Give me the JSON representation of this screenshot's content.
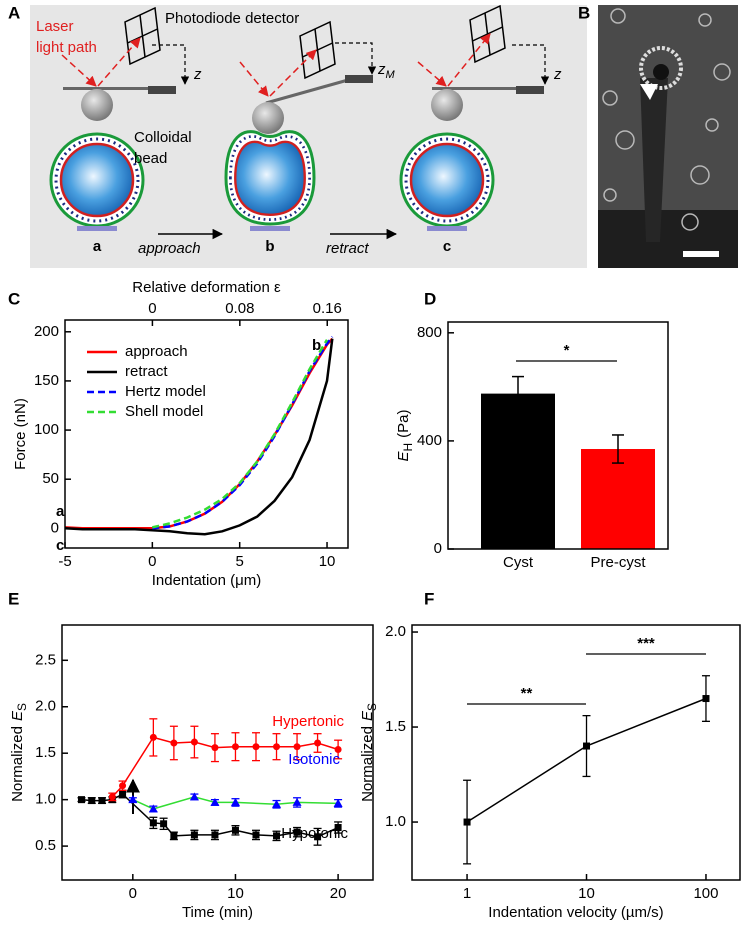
{
  "panel_labels": [
    "A",
    "B",
    "C",
    "D",
    "E",
    "F"
  ],
  "schematic": {
    "detector_label": "Photodiode detector",
    "laser_label": [
      "Laser",
      "light path"
    ],
    "bead_label": [
      "Colloidal",
      "bead"
    ],
    "states": [
      "a",
      "b",
      "c"
    ],
    "steps": [
      "approach",
      "retract"
    ],
    "heights": [
      {
        "symbol": "z"
      },
      {
        "symbol": "z",
        "subscript": "M"
      },
      {
        "symbol": "z"
      }
    ]
  },
  "chart_data": [
    {
      "type": "line",
      "x_label": "Indentation (μm)",
      "y_label": "Force (nN)",
      "x2_label": "Relative deformation ε",
      "xlim": [
        -5,
        11.2
      ],
      "xticks": [
        -5,
        0,
        5,
        10
      ],
      "ylim": [
        -20,
        212
      ],
      "yticks": [
        0,
        50,
        100,
        150,
        200
      ],
      "x2lim": [
        -0.08,
        0.179
      ],
      "x2ticks": [
        0,
        0.08,
        0.16
      ],
      "legend": "upper left",
      "annotations": [
        "a",
        "b",
        "c"
      ],
      "series": [
        {
          "name": "approach",
          "color": "#ff0000",
          "x": [
            -5,
            -4,
            -3,
            -2,
            -1,
            0,
            1,
            2,
            3,
            4,
            5,
            6,
            7,
            8,
            9,
            10,
            10.3
          ],
          "values": [
            1,
            0,
            0,
            0,
            0,
            0,
            2,
            7,
            15,
            27,
            45,
            68,
            95,
            125,
            158,
            187,
            193
          ]
        },
        {
          "name": "retract",
          "color": "#000000",
          "x": [
            -5,
            -4,
            -3,
            -2,
            -1,
            0,
            1,
            2,
            3,
            4,
            5,
            6,
            7,
            8,
            9,
            10,
            10.3
          ],
          "values": [
            0,
            -1,
            -1,
            -1,
            -1,
            -2,
            -3,
            -5,
            -6,
            -3,
            3,
            12,
            28,
            52,
            90,
            150,
            193
          ]
        },
        {
          "name": "Hertz model",
          "color": "#0000ff",
          "dash": true,
          "x": [
            0,
            1,
            2,
            3,
            4,
            5,
            6,
            7,
            8,
            9,
            10,
            10.3
          ],
          "values": [
            0,
            2,
            7,
            15,
            27,
            44,
            66,
            94,
            126,
            160,
            188,
            195
          ]
        },
        {
          "name": "Shell model",
          "color": "#33dd33",
          "dash": true,
          "x": [
            0,
            1,
            2,
            3,
            4,
            5,
            6,
            7,
            8,
            9,
            10
          ],
          "values": [
            1,
            5,
            11,
            19,
            30,
            46,
            68,
            96,
            128,
            162,
            192
          ]
        }
      ]
    },
    {
      "type": "bar",
      "y_label": {
        "symbol": "E",
        "subscript": "H",
        "unit": "(Pa)"
      },
      "categories": [
        "Cyst",
        "Pre-cyst"
      ],
      "values": [
        575,
        370
      ],
      "errors": [
        63,
        52
      ],
      "colors": [
        "#000000",
        "#ff0000"
      ],
      "ylim": [
        0,
        840
      ],
      "yticks": [
        0,
        400,
        800
      ],
      "significance": [
        "*"
      ]
    },
    {
      "type": "line",
      "x_label": "Time (min)",
      "y_label": {
        "text": "Normalized",
        "symbol": "E",
        "subscript": "S"
      },
      "xlim": [
        -6.9,
        23.4
      ],
      "xticks": [
        0,
        10,
        20
      ],
      "ylim": [
        0.135,
        2.88
      ],
      "yticks": [
        0.5,
        {
          "value": 1.0,
          "label": "1.0"
        },
        1.5,
        {
          "value": 2.0,
          "label": "2.0"
        },
        2.5
      ],
      "series": [
        {
          "name": "Hypotonic",
          "color": "#000000",
          "marker": "square",
          "x": [
            -5,
            -4,
            -3,
            -2,
            -1,
            2,
            3,
            4,
            6,
            8,
            10,
            12,
            14,
            16,
            18,
            20
          ],
          "values": [
            1.0,
            0.99,
            0.99,
            1.0,
            1.06,
            0.75,
            0.74,
            0.61,
            0.62,
            0.62,
            0.67,
            0.62,
            0.61,
            0.65,
            0.6,
            0.7
          ],
          "errors": [
            0.02,
            0.03,
            0.03,
            0.03,
            0.04,
            0.06,
            0.06,
            0.04,
            0.05,
            0.05,
            0.05,
            0.05,
            0.05,
            0.05,
            0.09,
            0.06
          ]
        },
        {
          "name": "Hypertonic",
          "color": "#ff0000",
          "marker": "circle",
          "x": [
            -2,
            -1,
            2,
            4,
            6,
            8,
            10,
            12,
            14,
            16,
            18,
            20
          ],
          "values": [
            1.03,
            1.15,
            1.67,
            1.61,
            1.62,
            1.56,
            1.57,
            1.57,
            1.57,
            1.57,
            1.61,
            1.54
          ],
          "errors": [
            0.04,
            0.05,
            0.2,
            0.18,
            0.17,
            0.15,
            0.15,
            0.15,
            0.14,
            0.14,
            0.1,
            0.1
          ]
        },
        {
          "name": "Isotonic",
          "color": "#0000ff",
          "line_color": "#33dd33",
          "marker": "triangle",
          "x": [
            0,
            2,
            6,
            8,
            10,
            14,
            16,
            20
          ],
          "values": [
            1.0,
            0.9,
            1.03,
            0.97,
            0.97,
            0.95,
            0.97,
            0.96
          ],
          "errors": [
            0.02,
            0.03,
            0.03,
            0.03,
            0.04,
            0.04,
            0.05,
            0.04
          ]
        }
      ]
    },
    {
      "type": "line",
      "x_label": "Indentation velocity (µm/s)",
      "y_label": {
        "text": "Normalized",
        "symbol": "E",
        "subscript": "S"
      },
      "x_scale": "log",
      "xlim": [
        0.346,
        192.7
      ],
      "xticks": [
        1,
        10,
        100
      ],
      "ylim": [
        0.695,
        2.037
      ],
      "yticks": [
        {
          "value": 1.0,
          "label": "1.0"
        },
        1.5,
        {
          "value": 2.0,
          "label": "2.0"
        }
      ],
      "significance": [
        "**",
        "***"
      ],
      "series": [
        {
          "color": "#000000",
          "marker": "square",
          "x": [
            1,
            10,
            100
          ],
          "values": [
            1.0,
            1.4,
            1.65
          ],
          "errors": [
            0.22,
            0.16,
            0.12
          ]
        }
      ]
    }
  ]
}
